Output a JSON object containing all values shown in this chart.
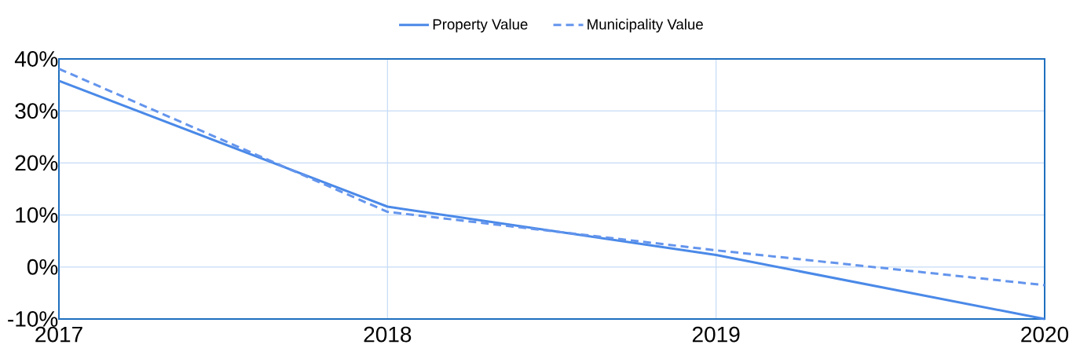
{
  "chart_data": {
    "type": "line",
    "x": [
      2017,
      2018,
      2019,
      2020
    ],
    "series": [
      {
        "name": "Property Value",
        "color": "#4a89e8",
        "line_style": "solid",
        "values": [
          35.8,
          11.6,
          2.3,
          -10
        ]
      },
      {
        "name": "Municipality Value",
        "color": "#6495ed",
        "line_style": "dashed",
        "values": [
          38.1,
          10.6,
          3.2,
          -3.5
        ]
      }
    ],
    "xlim": [
      2017,
      2020
    ],
    "xticks": [
      2017,
      2018,
      2019,
      2020
    ],
    "ylim": [
      -10,
      40
    ],
    "yticks": [
      {
        "value": -10,
        "label": "-10%"
      },
      {
        "value": 0,
        "label": "0%"
      },
      {
        "value": 10,
        "label": "10%"
      },
      {
        "value": 20,
        "label": "20%"
      },
      {
        "value": 30,
        "label": "30%"
      },
      {
        "value": 40,
        "label": "40%"
      }
    ],
    "grid": true,
    "legend": "top"
  }
}
